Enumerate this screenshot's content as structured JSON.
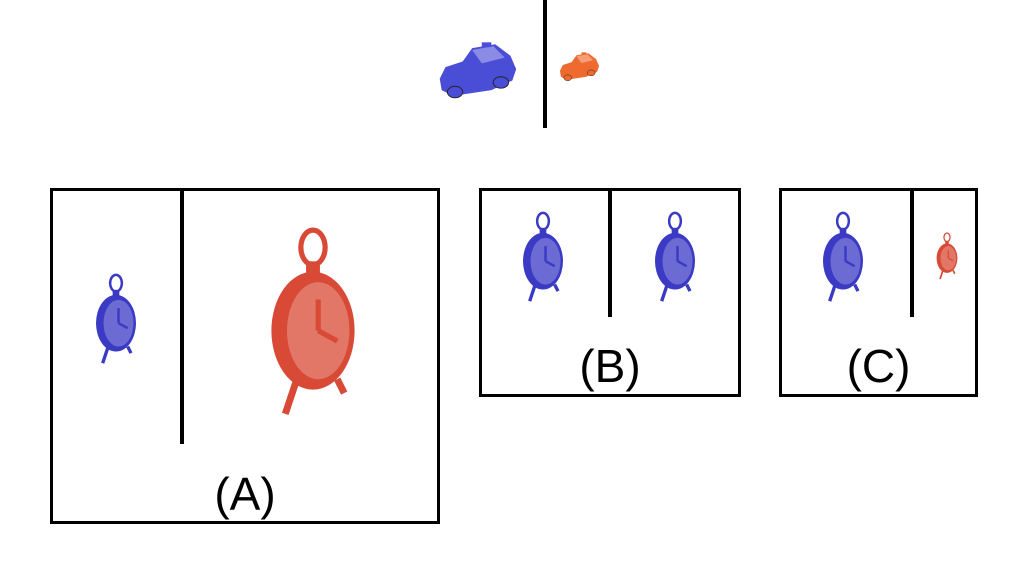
{
  "prompt": {
    "left_object": "blue-car-icon",
    "right_object": "orange-car-icon",
    "colors": {
      "left": "#4a4dd6",
      "right": "#ee6a2e"
    }
  },
  "options": [
    {
      "label": "(A)",
      "left_object": "blue-clock-icon",
      "right_object": "red-clock-icon",
      "colors": {
        "left": "#3a3ac4",
        "right": "#d84a36"
      }
    },
    {
      "label": "(B)",
      "left_object": "blue-clock-icon",
      "right_object": "blue-clock-icon",
      "colors": {
        "left": "#3a3ac4",
        "right": "#3a3ac4"
      }
    },
    {
      "label": "(C)",
      "left_object": "blue-clock-icon",
      "right_object": "red-clock-icon",
      "colors": {
        "left": "#3a3ac4",
        "right": "#d84a36"
      }
    }
  ]
}
